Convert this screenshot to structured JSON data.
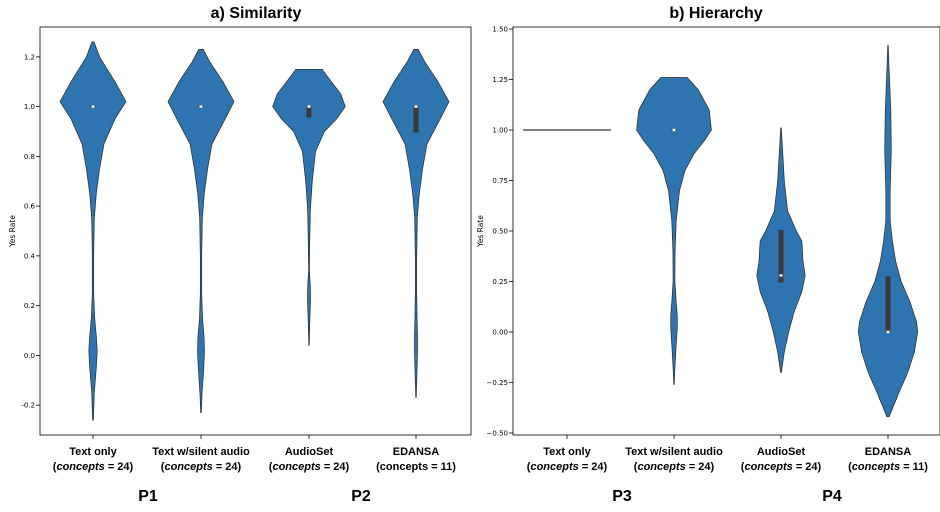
{
  "chart_data": [
    {
      "type": "violin",
      "title": "a) Similarity",
      "ylabel": "Yes Rate",
      "xlabel": "",
      "ylim": [
        -0.32,
        1.32
      ],
      "yticks": [
        "-0.2",
        "0.0",
        "0.2",
        "0.4",
        "0.6",
        "0.8",
        "1.0",
        "1.2"
      ],
      "grid": false,
      "categories": [
        {
          "line1": "Text only",
          "italic": "concepts",
          "rest": " = 24)"
        },
        {
          "line1": "Text w/silent audio",
          "italic": "concepts",
          "rest": " = 24)"
        },
        {
          "line1": "AudioSet",
          "italic": "concepts",
          "rest": " = 24)"
        },
        {
          "line1": "EDANSA",
          "italic": "",
          "rest": "concepts = 11)"
        }
      ],
      "violins": [
        {
          "shape": [
            [
              1.26,
              0.01
            ],
            [
              1.2,
              0.06
            ],
            [
              1.1,
              0.2
            ],
            [
              1.02,
              0.3
            ],
            [
              0.95,
              0.2
            ],
            [
              0.85,
              0.1
            ],
            [
              0.75,
              0.06
            ],
            [
              0.65,
              0.03
            ],
            [
              0.55,
              0.012
            ],
            [
              0.4,
              0.006
            ],
            [
              0.25,
              0.006
            ],
            [
              0.15,
              0.015
            ],
            [
              0.08,
              0.03
            ],
            [
              0.02,
              0.038
            ],
            [
              -0.05,
              0.03
            ],
            [
              -0.15,
              0.012
            ],
            [
              -0.26,
              0.004
            ]
          ],
          "median": 1.0,
          "q1": 1.0,
          "q3": 1.0
        },
        {
          "shape": [
            [
              1.23,
              0.02
            ],
            [
              1.18,
              0.08
            ],
            [
              1.1,
              0.2
            ],
            [
              1.02,
              0.3
            ],
            [
              0.95,
              0.22
            ],
            [
              0.85,
              0.1
            ],
            [
              0.75,
              0.06
            ],
            [
              0.65,
              0.03
            ],
            [
              0.55,
              0.012
            ],
            [
              0.4,
              0.006
            ],
            [
              0.25,
              0.006
            ],
            [
              0.15,
              0.014
            ],
            [
              0.08,
              0.027
            ],
            [
              0.02,
              0.032
            ],
            [
              -0.05,
              0.025
            ],
            [
              -0.15,
              0.01
            ],
            [
              -0.23,
              0.003
            ]
          ],
          "median": 1.0,
          "q1": 1.0,
          "q3": 1.0
        },
        {
          "shape": [
            [
              1.15,
              0.12
            ],
            [
              1.12,
              0.17
            ],
            [
              1.05,
              0.29
            ],
            [
              1.0,
              0.33
            ],
            [
              0.95,
              0.25
            ],
            [
              0.9,
              0.14
            ],
            [
              0.82,
              0.06
            ],
            [
              0.7,
              0.03
            ],
            [
              0.58,
              0.012
            ],
            [
              0.45,
              0.006
            ],
            [
              0.34,
              0.004
            ],
            [
              0.28,
              0.012
            ],
            [
              0.22,
              0.014
            ],
            [
              0.15,
              0.008
            ],
            [
              0.04,
              0.002
            ]
          ],
          "median": 1.0,
          "q1": 0.96,
          "q3": 1.0
        },
        {
          "shape": [
            [
              1.23,
              0.02
            ],
            [
              1.18,
              0.08
            ],
            [
              1.1,
              0.2
            ],
            [
              1.02,
              0.3
            ],
            [
              0.95,
              0.22
            ],
            [
              0.85,
              0.1
            ],
            [
              0.75,
              0.06
            ],
            [
              0.65,
              0.03
            ],
            [
              0.55,
              0.012
            ],
            [
              0.4,
              0.006
            ],
            [
              0.25,
              0.006
            ],
            [
              0.15,
              0.01
            ],
            [
              0.08,
              0.014
            ],
            [
              0.02,
              0.014
            ],
            [
              -0.08,
              0.008
            ],
            [
              -0.17,
              0.002
            ]
          ],
          "median": 1.0,
          "q1": 0.9,
          "q3": 1.0
        }
      ]
    },
    {
      "type": "violin",
      "title": "b) Hierarchy",
      "ylabel": "Yes Rate",
      "xlabel": "",
      "ylim": [
        -0.51,
        1.51
      ],
      "yticks": [
        "−0.50",
        "−0.25",
        "0.00",
        "0.25",
        "0.50",
        "0.75",
        "1.00",
        "1.25",
        "1.50"
      ],
      "grid": false,
      "categories": [
        {
          "line1": "Text only",
          "italic": "concepts",
          "rest": " = 24)"
        },
        {
          "line1": "Text w/silent audio",
          "italic": "concepts",
          "rest": " = 24)"
        },
        {
          "line1": "AudioSet",
          "italic": "concepts",
          "rest": " = 24)"
        },
        {
          "line1": "EDANSA",
          "italic": "concepts",
          "rest": " = 11)"
        }
      ],
      "violins": [
        {
          "flat_line": 1.0
        },
        {
          "shape": [
            [
              1.26,
              0.12
            ],
            [
              1.2,
              0.22
            ],
            [
              1.1,
              0.32
            ],
            [
              1.0,
              0.34
            ],
            [
              0.95,
              0.28
            ],
            [
              0.88,
              0.18
            ],
            [
              0.8,
              0.1
            ],
            [
              0.7,
              0.05
            ],
            [
              0.55,
              0.02
            ],
            [
              0.4,
              0.01
            ],
            [
              0.25,
              0.008
            ],
            [
              0.15,
              0.02
            ],
            [
              0.08,
              0.03
            ],
            [
              0.02,
              0.03
            ],
            [
              -0.08,
              0.018
            ],
            [
              -0.18,
              0.008
            ],
            [
              -0.26,
              0.002
            ]
          ],
          "median": 1.0,
          "q1": 1.0,
          "q3": 1.0
        },
        {
          "shape": [
            [
              1.01,
              0.003
            ],
            [
              0.9,
              0.015
            ],
            [
              0.75,
              0.03
            ],
            [
              0.6,
              0.06
            ],
            [
              0.5,
              0.14
            ],
            [
              0.45,
              0.19
            ],
            [
              0.35,
              0.2
            ],
            [
              0.28,
              0.22
            ],
            [
              0.2,
              0.19
            ],
            [
              0.1,
              0.12
            ],
            [
              0.0,
              0.07
            ],
            [
              -0.1,
              0.03
            ],
            [
              -0.2,
              0.004
            ]
          ],
          "median": 0.28,
          "q1": 0.25,
          "q3": 0.5
        },
        {
          "shape": [
            [
              1.42,
              0.002
            ],
            [
              1.3,
              0.01
            ],
            [
              1.1,
              0.025
            ],
            [
              0.9,
              0.03
            ],
            [
              0.7,
              0.02
            ],
            [
              0.55,
              0.02
            ],
            [
              0.45,
              0.04
            ],
            [
              0.35,
              0.07
            ],
            [
              0.25,
              0.12
            ],
            [
              0.15,
              0.2
            ],
            [
              0.05,
              0.26
            ],
            [
              0.0,
              0.27
            ],
            [
              -0.1,
              0.24
            ],
            [
              -0.2,
              0.18
            ],
            [
              -0.3,
              0.1
            ],
            [
              -0.38,
              0.04
            ],
            [
              -0.42,
              0.01
            ]
          ],
          "median": 0.0,
          "q1": 0.0,
          "q3": 0.27
        }
      ]
    }
  ],
  "group_labels": [
    "P1",
    "P2",
    "P3",
    "P4"
  ]
}
